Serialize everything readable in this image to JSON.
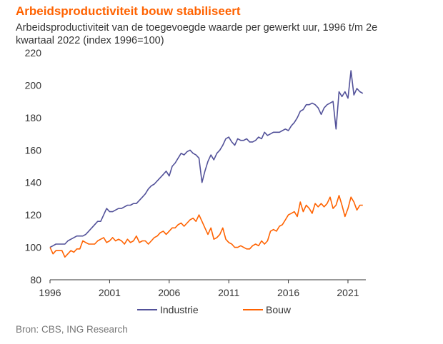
{
  "title": "Arbeidsproductiviteit bouw stabiliseert",
  "subtitle": "Arbeidsproductiviteit van de toegevoegde waarde per gewerkt uur, 1996 t/m 2e kwartaal 2022 (index 1996=100)",
  "source": "Bron: CBS, ING Research",
  "chart_data": {
    "type": "line",
    "xlabel": "",
    "ylabel": "",
    "xlim": [
      1996,
      2022.5
    ],
    "ylim": [
      80,
      220
    ],
    "yticks": [
      80,
      100,
      120,
      140,
      160,
      180,
      200,
      220
    ],
    "xticks": [
      1996,
      2001,
      2006,
      2011,
      2016,
      2021
    ],
    "grid": false,
    "legend": "bottom",
    "x": [
      1996,
      1996.25,
      1996.5,
      1996.75,
      1997,
      1997.25,
      1997.5,
      1997.75,
      1998,
      1998.25,
      1998.5,
      1998.75,
      1999,
      1999.25,
      1999.5,
      1999.75,
      2000,
      2000.25,
      2000.5,
      2000.75,
      2001,
      2001.25,
      2001.5,
      2001.75,
      2002,
      2002.25,
      2002.5,
      2002.75,
      2003,
      2003.25,
      2003.5,
      2003.75,
      2004,
      2004.25,
      2004.5,
      2004.75,
      2005,
      2005.25,
      2005.5,
      2005.75,
      2006,
      2006.25,
      2006.5,
      2006.75,
      2007,
      2007.25,
      2007.5,
      2007.75,
      2008,
      2008.25,
      2008.5,
      2008.75,
      2009,
      2009.25,
      2009.5,
      2009.75,
      2010,
      2010.25,
      2010.5,
      2010.75,
      2011,
      2011.25,
      2011.5,
      2011.75,
      2012,
      2012.25,
      2012.5,
      2012.75,
      2013,
      2013.25,
      2013.5,
      2013.75,
      2014,
      2014.25,
      2014.5,
      2014.75,
      2015,
      2015.25,
      2015.5,
      2015.75,
      2016,
      2016.25,
      2016.5,
      2016.75,
      2017,
      2017.25,
      2017.5,
      2017.75,
      2018,
      2018.25,
      2018.5,
      2018.75,
      2019,
      2019.25,
      2019.5,
      2019.75,
      2020,
      2020.25,
      2020.5,
      2020.75,
      2021,
      2021.25,
      2021.5,
      2021.75,
      2022,
      2022.25
    ],
    "series": [
      {
        "name": "Industrie",
        "color": "#525199",
        "values": [
          100,
          101,
          102,
          102,
          102,
          102,
          104,
          105,
          106,
          107,
          107,
          107,
          108,
          110,
          112,
          114,
          116,
          116,
          120,
          124,
          122,
          122,
          123,
          124,
          124,
          125,
          126,
          126,
          127,
          127,
          129,
          131,
          133,
          136,
          138,
          139,
          141,
          143,
          145,
          147,
          144,
          150,
          152,
          155,
          158,
          157,
          159,
          160,
          158,
          157,
          155,
          140,
          147,
          153,
          157,
          154,
          158,
          160,
          163,
          167,
          168,
          165,
          163,
          167,
          166,
          166,
          167,
          165,
          165,
          166,
          168,
          167,
          171,
          169,
          170,
          171,
          171,
          171,
          172,
          173,
          172,
          175,
          177,
          180,
          184,
          185,
          188,
          188,
          189,
          188,
          186,
          182,
          186,
          188,
          189,
          190,
          173,
          196,
          193,
          196,
          192,
          209,
          194,
          198,
          196,
          195
        ]
      },
      {
        "name": "Bouw",
        "color": "#ff6200",
        "values": [
          100,
          96,
          98,
          98,
          98,
          94,
          96,
          98,
          97,
          99,
          99,
          104,
          103,
          102,
          102,
          102,
          104,
          105,
          106,
          103,
          104,
          106,
          104,
          105,
          104,
          102,
          105,
          103,
          104,
          107,
          103,
          104,
          104,
          102,
          104,
          106,
          107,
          109,
          110,
          108,
          110,
          112,
          112,
          114,
          115,
          113,
          115,
          117,
          118,
          116,
          120,
          116,
          112,
          108,
          112,
          105,
          106,
          108,
          112,
          105,
          103,
          102,
          100,
          100,
          101,
          100,
          99,
          99,
          101,
          102,
          101,
          104,
          102,
          104,
          110,
          111,
          110,
          113,
          114,
          117,
          120,
          121,
          122,
          119,
          128,
          122,
          126,
          124,
          121,
          127,
          125,
          127,
          125,
          127,
          131,
          124,
          126,
          132,
          126,
          119,
          124,
          131,
          128,
          123,
          126,
          126
        ]
      }
    ]
  }
}
